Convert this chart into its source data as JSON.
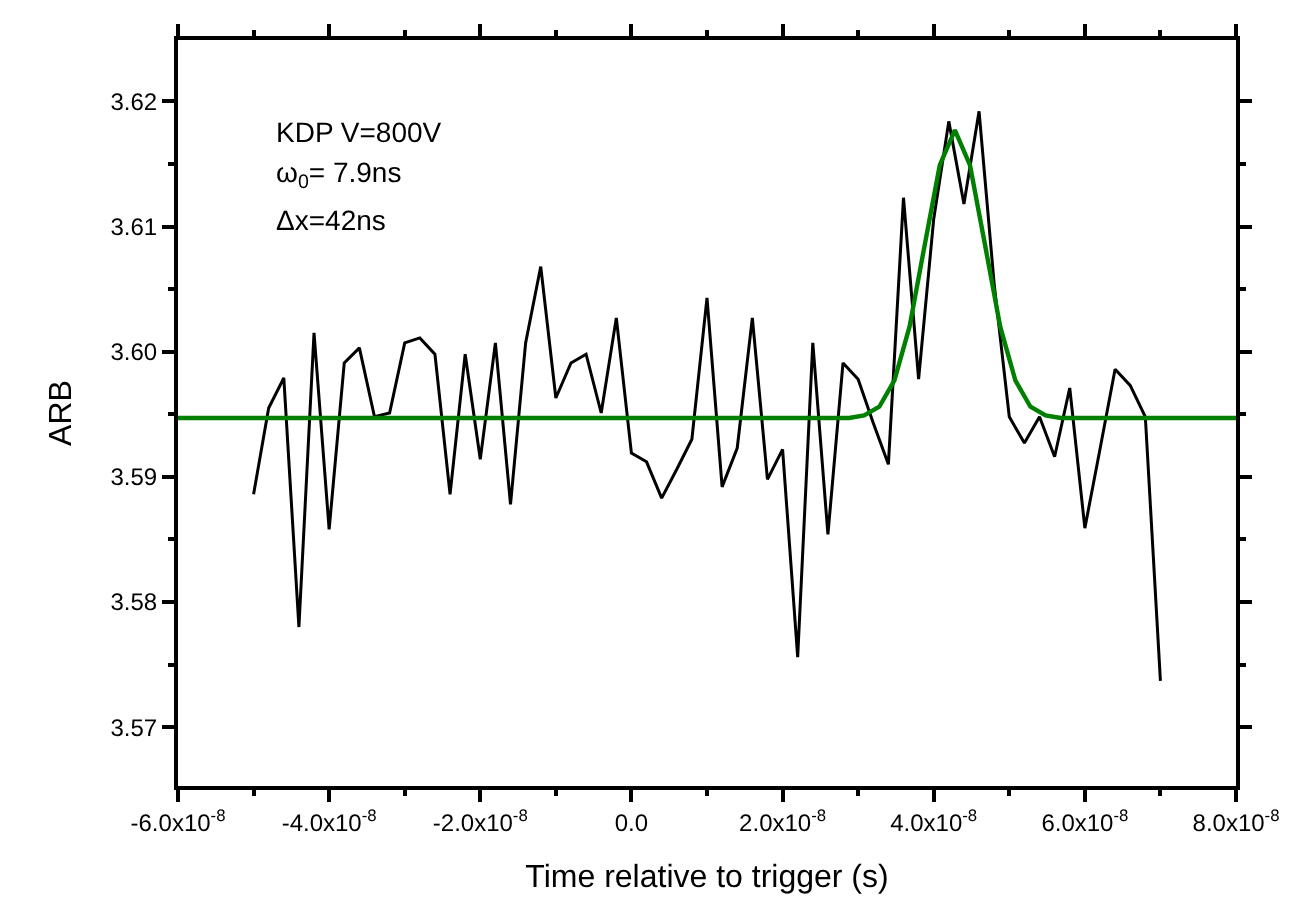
{
  "chart_data": {
    "type": "line",
    "xlabel": "Time relative to trigger (s)",
    "ylabel": "ARB",
    "annotations": [
      "KDP V=800V",
      "ω$_{0}$= 7.9ns",
      "Δx=42ns"
    ],
    "series": [
      {
        "color": "#000000",
        "x": [
          -5e-08,
          -4.8e-08,
          -4.6e-08,
          -4.4e-08,
          -4.2e-08,
          -4e-08,
          -3.8e-08,
          -3.6e-08,
          -3.4e-08,
          -3.2e-08,
          -3e-08,
          -2.8e-08,
          -2.6e-08,
          -2.4e-08,
          -2.2e-08,
          -2e-08,
          -1.8e-08,
          -1.6e-08,
          -1.4e-08,
          -1.2e-08,
          -1e-08,
          -8e-09,
          -6e-09,
          -4e-09,
          -2e-09,
          0,
          2e-09,
          4e-09,
          6e-09,
          8e-09,
          1e-08,
          1.2e-08,
          1.4e-08,
          1.6e-08,
          1.8e-08,
          2e-08,
          2.2e-08,
          2.4e-08,
          2.6e-08,
          2.8e-08,
          3e-08,
          3.2e-08,
          3.4e-08,
          3.6e-08,
          3.8e-08,
          4e-08,
          4.2e-08,
          4.4e-08,
          4.6e-08,
          4.8e-08,
          5e-08,
          5.2e-08,
          5.4e-08,
          5.6e-08,
          5.8e-08,
          6e-08,
          6.2e-08,
          6.4e-08,
          6.6e-08,
          6.8e-08,
          7e-08
        ],
        "values": [
          3.5886,
          3.5955,
          3.5979,
          3.578,
          3.6015,
          3.5858,
          3.5991,
          3.6003,
          3.5948,
          3.5951,
          3.6007,
          3.6011,
          3.5998,
          3.5886,
          3.5998,
          3.5914,
          3.6007,
          3.5878,
          3.6007,
          3.6068,
          3.5963,
          3.5991,
          3.5998,
          3.5951,
          3.6027,
          3.5919,
          3.5912,
          3.5883,
          3.5906,
          3.593,
          3.6043,
          3.5892,
          3.5923,
          3.6027,
          3.5898,
          3.5922,
          3.5756,
          3.6007,
          3.5854,
          3.5991,
          3.5978,
          3.5943,
          3.591,
          3.6123,
          3.5978,
          3.6106,
          3.6184,
          3.6118,
          3.6192,
          3.6054,
          3.5948,
          3.5927,
          3.5948,
          3.5916,
          3.5971,
          3.5859,
          3.5922,
          3.5986,
          3.5973,
          3.5948,
          3.5737
        ]
      },
      {
        "color": "#008000",
        "x": [
          -6e-08,
          2.88e-08,
          3.08e-08,
          3.28e-08,
          3.48e-08,
          3.68e-08,
          3.88e-08,
          4.08e-08,
          4.28e-08,
          4.48e-08,
          4.68e-08,
          4.88e-08,
          5.08e-08,
          5.28e-08,
          5.48e-08,
          5.68e-08,
          8e-08
        ],
        "values": [
          3.5947,
          3.5947,
          3.5949,
          3.5956,
          3.5977,
          3.602,
          3.6085,
          3.6149,
          3.6177,
          3.6149,
          3.6085,
          3.602,
          3.5977,
          3.5956,
          3.5949,
          3.5947,
          3.5947
        ]
      }
    ],
    "xlim": [
      -6e-08,
      8e-08
    ],
    "xticks": [
      {
        "value": -6e-08,
        "label": "-6.0x10$^{-8}$"
      },
      {
        "value": -4e-08,
        "label": "-4.0x10$^{-8}$"
      },
      {
        "value": -2e-08,
        "label": "-2.0x10$^{-8}$"
      },
      {
        "value": 0,
        "label": "0.0"
      },
      {
        "value": 2e-08,
        "label": "2.0x10$^{-8}$"
      },
      {
        "value": 4e-08,
        "label": "4.0x10$^{-8}$"
      },
      {
        "value": 6e-08,
        "label": "6.0x10$^{-8}$"
      },
      {
        "value": 8e-08,
        "label": "8.0x10$^{-8}$"
      }
    ],
    "ylim": [
      3.5653,
      3.6249
    ],
    "yticks": [
      {
        "value": 3.57,
        "label": "3.57"
      },
      {
        "value": 3.58,
        "label": "3.58"
      },
      {
        "value": 3.59,
        "label": "3.59"
      },
      {
        "value": 3.6,
        "label": "3.60"
      },
      {
        "value": 3.61,
        "label": "3.61"
      },
      {
        "value": 3.62,
        "label": "3.62"
      }
    ],
    "marker": "none",
    "line_style": "solid"
  }
}
